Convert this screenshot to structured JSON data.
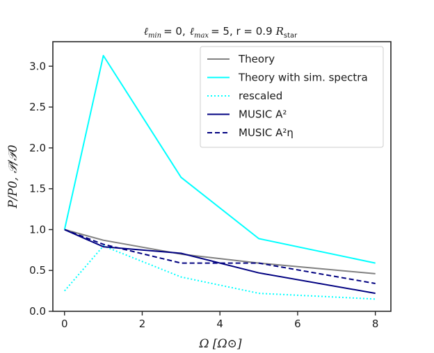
{
  "chart_data": {
    "type": "line",
    "title": "ℓmin = 0, ℓmax = 5, r = 0.9 Rstar",
    "title_parts": {
      "lmin_symbol": "ℓ",
      "lmin_sub": "min",
      "lmin_value": "= 0,",
      "lmax_symbol": "ℓ",
      "lmax_sub": "max",
      "lmax_value": "= 5, r = 0.9",
      "rstar_symbol": "R",
      "rstar_sub": "star"
    },
    "xlabel": "Ω [Ω⊙]",
    "ylabel": "P/P0, 𝒫/𝒫0",
    "xlim": [
      -0.3,
      8.4
    ],
    "ylim": [
      0.0,
      3.3
    ],
    "x_ticks": [
      0,
      2,
      4,
      6,
      8
    ],
    "x_tick_labels": [
      "0",
      "2",
      "4",
      "6",
      "8"
    ],
    "y_ticks": [
      0.0,
      0.5,
      1.0,
      1.5,
      2.0,
      2.5,
      3.0
    ],
    "y_tick_labels": [
      "0.0",
      "0.5",
      "1.0",
      "1.5",
      "2.0",
      "2.5",
      "3.0"
    ],
    "grid": false,
    "legend_position": "top-right",
    "series": [
      {
        "name": "Theory",
        "legend_label": "Theory",
        "color": "#808080",
        "dash": "solid",
        "x": [
          0,
          1,
          3,
          5,
          8
        ],
        "values": [
          1.0,
          0.87,
          0.7,
          0.59,
          0.46
        ]
      },
      {
        "name": "Theory with sim. spectra",
        "legend_label": "Theory with sim. spectra",
        "color": "#00ffff",
        "dash": "solid",
        "x": [
          0,
          1,
          3,
          5,
          8
        ],
        "values": [
          1.0,
          3.13,
          1.64,
          0.89,
          0.59
        ]
      },
      {
        "name": "rescaled",
        "legend_label": "rescaled",
        "color": "#00ffff",
        "dash": "dotted",
        "x": [
          0,
          1,
          3,
          5,
          8
        ],
        "values": [
          0.25,
          0.8,
          0.42,
          0.22,
          0.15
        ]
      },
      {
        "name": "MUSIC A^2",
        "legend_label": "MUSIC A²",
        "color": "#000080",
        "dash": "solid",
        "x": [
          0,
          1,
          3,
          5,
          8
        ],
        "values": [
          1.0,
          0.79,
          0.71,
          0.47,
          0.22
        ]
      },
      {
        "name": "MUSIC A^2 eta",
        "legend_label": "MUSIC A²η",
        "color": "#000080",
        "dash": "dashed",
        "x": [
          0,
          1,
          3,
          5,
          8
        ],
        "values": [
          1.0,
          0.82,
          0.59,
          0.59,
          0.34
        ]
      }
    ]
  }
}
